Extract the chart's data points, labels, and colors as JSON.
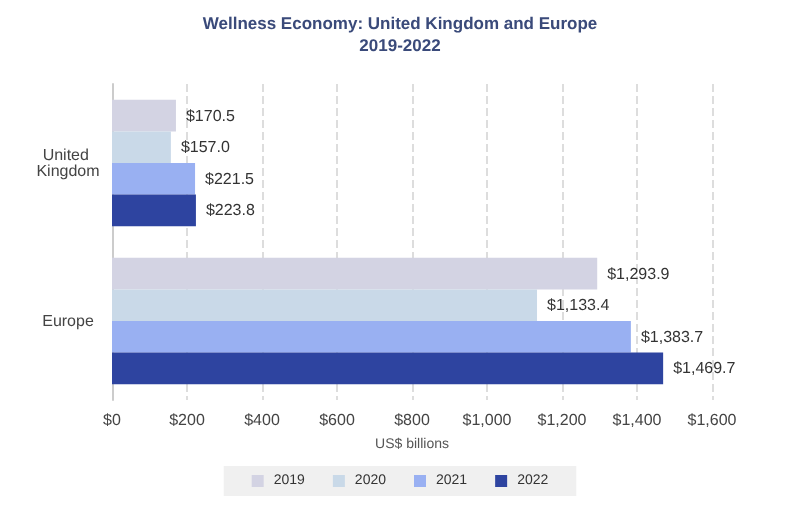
{
  "chart_data": {
    "type": "bar",
    "orientation": "horizontal",
    "title": "Wellness Economy: United Kingdom and Europe",
    "subtitle": "2019-2022",
    "xlabel": "US$ billions",
    "categories": [
      "United Kingdom",
      "Europe"
    ],
    "series": [
      {
        "name": "2019",
        "color": "#d3d3e3",
        "values": [
          170.5,
          1293.9
        ],
        "value_labels": [
          "$170.5",
          "$1,293.9"
        ]
      },
      {
        "name": "2020",
        "color": "#c9d9e8",
        "values": [
          157.0,
          1133.4
        ],
        "value_labels": [
          "$157.0",
          "$1,133.4"
        ]
      },
      {
        "name": "2021",
        "color": "#99b0f2",
        "values": [
          221.5,
          1383.7
        ],
        "value_labels": [
          "$221.5",
          "$1,383.7"
        ]
      },
      {
        "name": "2022",
        "color": "#2e44a0",
        "values": [
          223.8,
          1469.7
        ],
        "value_labels": [
          "$223.8",
          "$1,469.7"
        ]
      }
    ],
    "xlim": [
      0,
      1600
    ],
    "xticks": [
      {
        "value": 0,
        "label": "$0"
      },
      {
        "value": 200,
        "label": "$200"
      },
      {
        "value": 400,
        "label": "$400"
      },
      {
        "value": 600,
        "label": "$600"
      },
      {
        "value": 800,
        "label": "$800"
      },
      {
        "value": 1000,
        "label": "$1,000"
      },
      {
        "value": 1200,
        "label": "$1,200"
      },
      {
        "value": 1400,
        "label": "$1,400"
      },
      {
        "value": 1600,
        "label": "$1,600"
      }
    ],
    "grid": "x",
    "legend": "bottom"
  }
}
